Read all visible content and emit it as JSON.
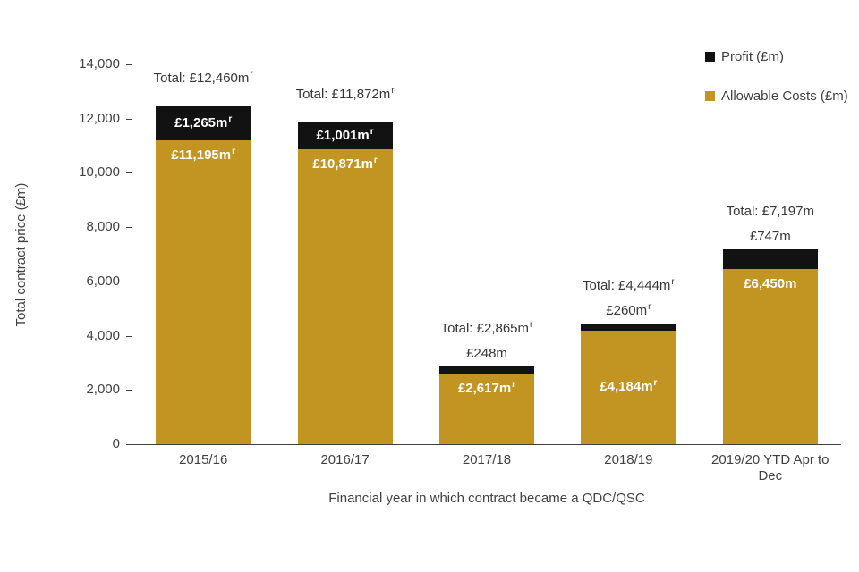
{
  "chart_data": {
    "type": "bar",
    "stacked": true,
    "title": "",
    "xlabel": "Financial year in which contract became a QDC/QSC",
    "ylabel": "Total contract price (£m)",
    "ylim": [
      0,
      14000
    ],
    "ytick_step": 2000,
    "ytick_labels": [
      "0",
      "2,000",
      "4,000",
      "6,000",
      "8,000",
      "10,000",
      "12,000",
      "14,000"
    ],
    "categories": [
      "2015/16",
      "2016/17",
      "2017/18",
      "2018/19",
      "2019/20 YTD Apr to Dec"
    ],
    "series": [
      {
        "name": "Allowable Costs (£m)",
        "color": "#C29422",
        "values": [
          11195,
          10871,
          2617,
          4184,
          6450
        ]
      },
      {
        "name": "Profit (£m)",
        "color": "#121212",
        "values": [
          1265,
          1001,
          248,
          260,
          747
        ]
      }
    ],
    "totals": [
      12460,
      11872,
      2865,
      4444,
      7197
    ],
    "bars": [
      {
        "category": "2015/16",
        "cost": 11195,
        "profit": 1265,
        "total": 12460,
        "total_label": "Total: £12,460m",
        "total_sup": "r",
        "profit_label": "£1,265m",
        "profit_sup": "r",
        "profit_pos": "inside",
        "cost_label": "£11,195m",
        "cost_sup": "r",
        "cost_pos": "top"
      },
      {
        "category": "2016/17",
        "cost": 10871,
        "profit": 1001,
        "total": 11872,
        "total_label": "Total: £11,872m",
        "total_sup": "r",
        "profit_label": "£1,001m",
        "profit_sup": "r",
        "profit_pos": "inside",
        "cost_label": "£10,871m",
        "cost_sup": "r",
        "cost_pos": "top"
      },
      {
        "category": "2017/18",
        "cost": 2617,
        "profit": 248,
        "total": 2865,
        "total_label": "Total: £2,865m",
        "total_sup": "r",
        "profit_label": "£248m",
        "profit_sup": "",
        "profit_pos": "above",
        "cost_label": "£2,617m",
        "cost_sup": "r",
        "cost_pos": "top"
      },
      {
        "category": "2018/19",
        "cost": 4184,
        "profit": 260,
        "total": 4444,
        "total_label": "Total: £4,444m",
        "total_sup": "r",
        "profit_label": "£260m",
        "profit_sup": "r",
        "profit_pos": "above",
        "cost_label": "£4,184m",
        "cost_sup": "r",
        "cost_pos": "center"
      },
      {
        "category": "2019/20 YTD Apr to Dec",
        "cost": 6450,
        "profit": 747,
        "total": 7197,
        "total_label": "Total: £7,197m",
        "total_sup": "",
        "profit_label": "£747m",
        "profit_sup": "",
        "profit_pos": "above",
        "cost_label": "£6,450m",
        "cost_sup": "",
        "cost_pos": "top"
      }
    ],
    "legend": [
      {
        "label": "Profit (£m)",
        "color": "#121212"
      },
      {
        "label": "Allowable Costs (£m)",
        "color": "#C29422"
      }
    ],
    "colors": {
      "costs": "#C29422",
      "profit": "#121212",
      "axis": "#3f3f3f",
      "text": "#404040"
    },
    "legend_position": "top-right",
    "grid": false
  }
}
